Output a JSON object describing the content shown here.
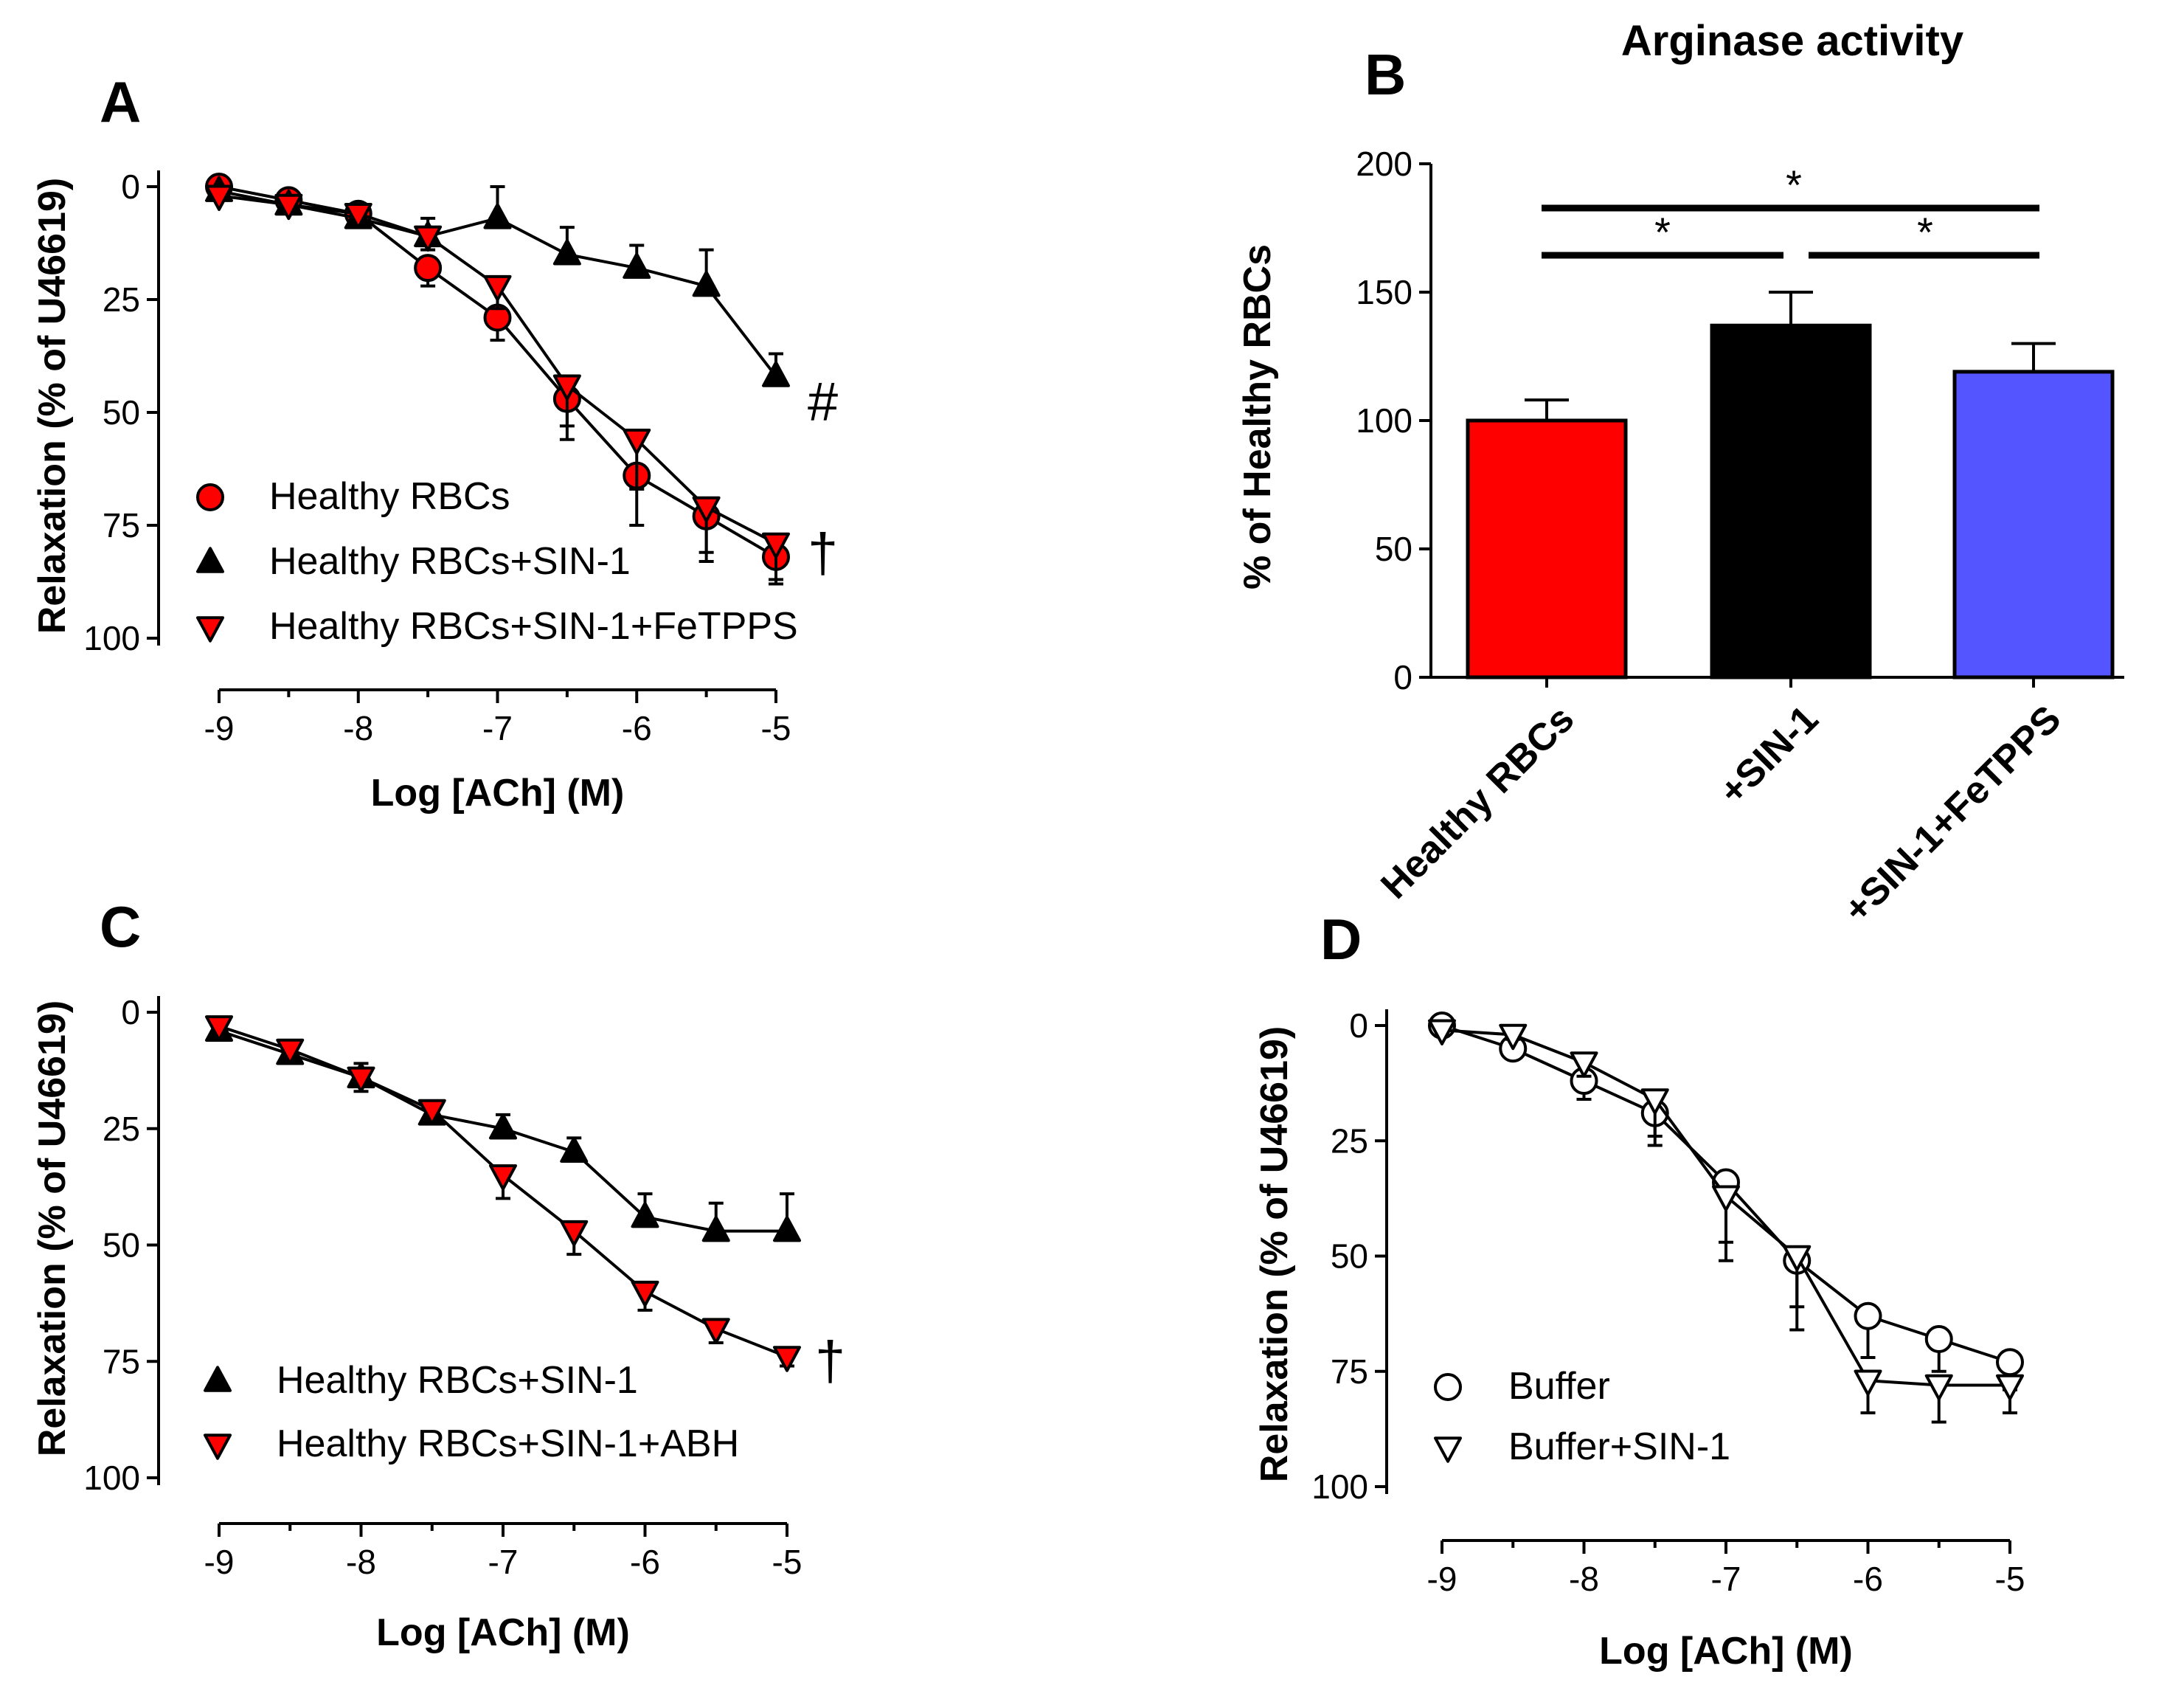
{
  "chart_data": [
    {
      "panel": "A",
      "type": "line",
      "title": "",
      "xlabel": "Log [ACh] (M)",
      "ylabel": "Relaxation (% of U46619)",
      "xlim": [
        -9,
        -5
      ],
      "ylim": [
        0,
        100
      ],
      "y_inverted": true,
      "xticks": [
        -9,
        -8,
        -7,
        -6,
        -5
      ],
      "yticks": [
        0,
        25,
        50,
        75,
        100
      ],
      "x": [
        -9,
        -8.5,
        -8,
        -7.5,
        -7,
        -6.5,
        -6,
        -5.5,
        -5
      ],
      "series": [
        {
          "name": "Healthy RBCs",
          "marker": "circle",
          "color": "#ff0000",
          "values": [
            0,
            3,
            6,
            18,
            29,
            47,
            64,
            73,
            82
          ],
          "errors": [
            0,
            2,
            2,
            4,
            5,
            6,
            11,
            8,
            5
          ]
        },
        {
          "name": "Healthy RBCs+SIN-1",
          "marker": "triangle-up",
          "color": "#000000",
          "values": [
            1,
            4,
            7,
            11,
            7,
            15,
            18,
            22,
            42
          ],
          "errors": [
            0,
            1,
            2,
            4,
            7,
            6,
            5,
            8,
            5
          ]
        },
        {
          "name": "Healthy RBCs+SIN-1+FeTPPS",
          "marker": "triangle-down",
          "color": "#ff0000",
          "values": [
            2,
            4,
            6,
            11,
            22,
            44,
            56,
            71,
            79
          ],
          "errors": [
            0,
            2,
            2,
            3,
            5,
            12,
            11,
            12,
            9
          ]
        }
      ],
      "annotations": [
        "#",
        "†"
      ]
    },
    {
      "panel": "B",
      "type": "bar",
      "title": "Arginase activity",
      "xlabel": "",
      "ylabel": "% of Healthy RBCs",
      "ylim": [
        0,
        200
      ],
      "yticks": [
        0,
        50,
        100,
        150,
        200
      ],
      "categories": [
        "Healthy RBCs",
        "+SIN-1",
        "+SIN-1+FeTPPS"
      ],
      "values": [
        100,
        137,
        119
      ],
      "errors": [
        8,
        13,
        11
      ],
      "colors": [
        "#ff0000",
        "#000000",
        "#5555ff"
      ],
      "significance_marker": "*"
    },
    {
      "panel": "C",
      "type": "line",
      "title": "",
      "xlabel": "Log [ACh] (M)",
      "ylabel": "Relaxation (% of U46619)",
      "xlim": [
        -9,
        -5
      ],
      "ylim": [
        0,
        100
      ],
      "y_inverted": true,
      "xticks": [
        -9,
        -8,
        -7,
        -6,
        -5
      ],
      "yticks": [
        0,
        25,
        50,
        75,
        100
      ],
      "x": [
        -9,
        -8.5,
        -8,
        -7.5,
        -7,
        -6.5,
        -6,
        -5.5,
        -5
      ],
      "series": [
        {
          "name": "Healthy RBCs+SIN-1",
          "marker": "triangle-up",
          "color": "#000000",
          "values": [
            4,
            9,
            14,
            22,
            25,
            30,
            44,
            47,
            47
          ],
          "errors": [
            1,
            2,
            3,
            2,
            3,
            3,
            5,
            6,
            8
          ]
        },
        {
          "name": "Healthy RBCs+SIN-1+ABH",
          "marker": "triangle-down",
          "color": "#ff0000",
          "values": [
            3,
            8,
            14,
            21,
            35,
            47,
            60,
            68,
            74
          ],
          "errors": [
            1,
            3,
            3,
            2,
            5,
            5,
            4,
            3,
            2
          ]
        }
      ],
      "annotations": [
        "†"
      ]
    },
    {
      "panel": "D",
      "type": "line",
      "title": "",
      "xlabel": "Log [ACh] (M)",
      "ylabel": "Relaxation (% of U46619)",
      "xlim": [
        -9,
        -5
      ],
      "ylim": [
        0,
        100
      ],
      "y_inverted": true,
      "xticks": [
        -9,
        -8,
        -7,
        -6,
        -5
      ],
      "yticks": [
        0,
        25,
        50,
        75,
        100
      ],
      "x": [
        -9,
        -8.5,
        -8,
        -7.5,
        -7,
        -6.5,
        -6,
        -5.5,
        -5
      ],
      "series": [
        {
          "name": "Buffer",
          "marker": "circle-open",
          "color": "#ffffff",
          "values": [
            0,
            5,
            12,
            19,
            34,
            51,
            63,
            68,
            73
          ],
          "errors": [
            0,
            2,
            4,
            7,
            13,
            10,
            9,
            7,
            6
          ]
        },
        {
          "name": "Buffer+SIN-1",
          "marker": "triangle-down-open",
          "color": "#ffffff",
          "values": [
            1,
            2,
            8,
            16,
            37,
            50,
            77,
            78,
            78
          ],
          "errors": [
            0,
            1,
            3,
            8,
            14,
            16,
            7,
            8,
            6
          ]
        }
      ],
      "annotations": []
    }
  ]
}
